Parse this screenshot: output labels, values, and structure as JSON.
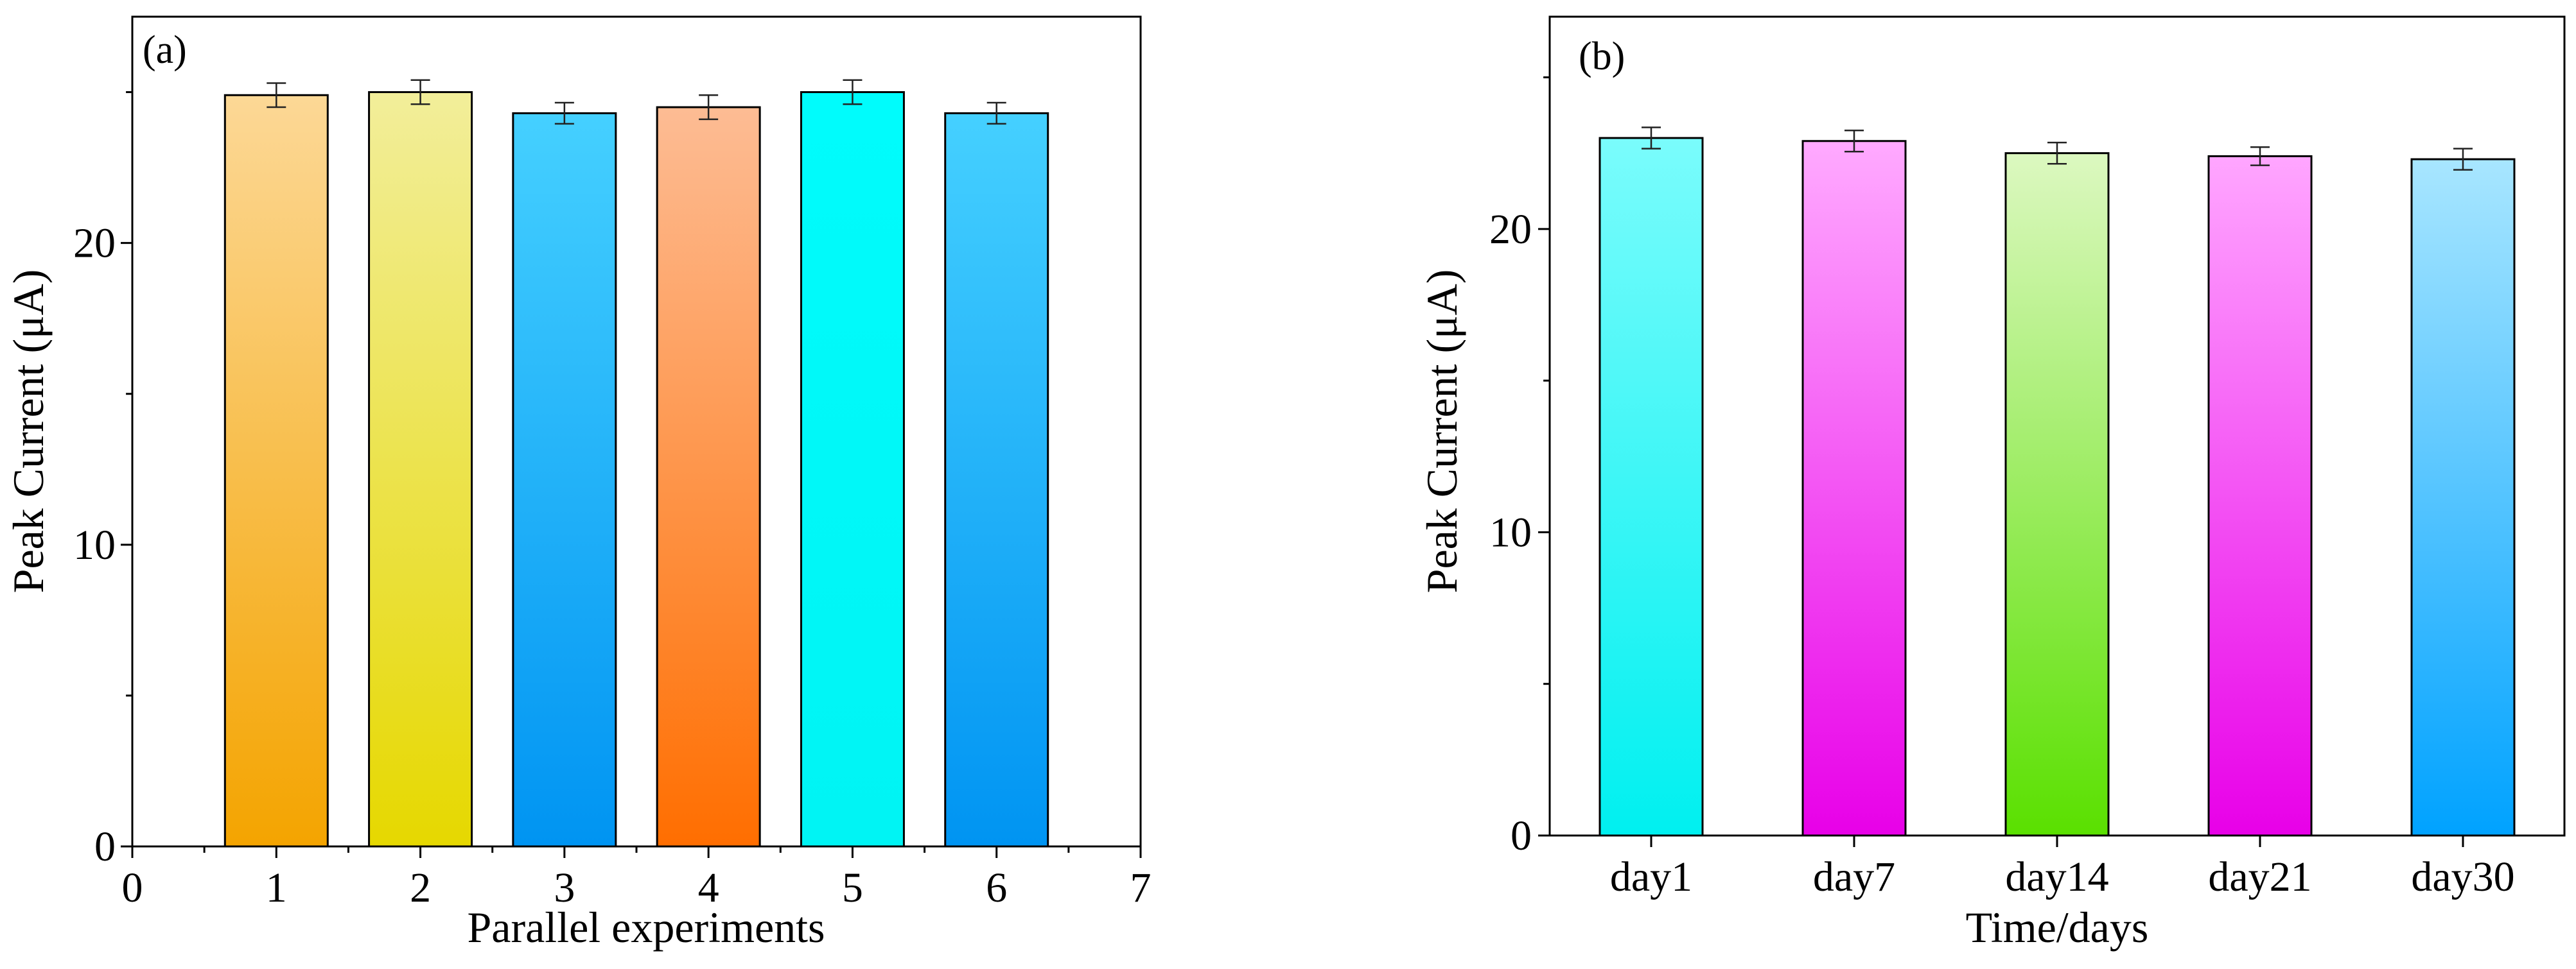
{
  "chart_data": [
    {
      "type": "bar",
      "panel_label": "(a)",
      "xlabel": "Parallel experiments",
      "ylabel": "Peak Current (μA)",
      "xlim": [
        0,
        7
      ],
      "ylim": [
        0,
        27.5
      ],
      "x_ticks": [
        "0",
        "1",
        "2",
        "3",
        "4",
        "5",
        "6",
        "7"
      ],
      "y_ticks": [
        "0",
        "10",
        "20"
      ],
      "categories": [
        "1",
        "2",
        "3",
        "4",
        "5",
        "6"
      ],
      "values": [
        24.9,
        25.0,
        24.3,
        24.5,
        25.0,
        24.3
      ],
      "errors": [
        0.4,
        0.4,
        0.35,
        0.4,
        0.4,
        0.35
      ],
      "bar_colors": [
        [
          "#fcd896",
          "#f4a400"
        ],
        [
          "#f2ee9a",
          "#e6d800"
        ],
        [
          "#45d0ff",
          "#0094f2"
        ],
        [
          "#fdbc94",
          "#ff6e00"
        ],
        [
          "#00fcfc",
          "#00f4f4"
        ],
        [
          "#45d0ff",
          "#0094f2"
        ]
      ]
    },
    {
      "type": "bar",
      "panel_label": "(b)",
      "xlabel": "Time/days",
      "ylabel": "Peak Current (μA)",
      "ylim": [
        0,
        27
      ],
      "y_ticks": [
        "0",
        "10",
        "20"
      ],
      "categories": [
        "day1",
        "day7",
        "day14",
        "day21",
        "day30"
      ],
      "values": [
        23.0,
        22.9,
        22.5,
        22.4,
        22.3
      ],
      "errors": [
        0.35,
        0.35,
        0.35,
        0.3,
        0.35
      ],
      "bar_colors": [
        [
          "#7afcfc",
          "#00f0f0"
        ],
        [
          "#ffaaff",
          "#e800e8"
        ],
        [
          "#dcf8c0",
          "#5ae000"
        ],
        [
          "#ffa6ff",
          "#e800e8"
        ],
        [
          "#a8e6ff",
          "#00a2ff"
        ]
      ]
    }
  ]
}
